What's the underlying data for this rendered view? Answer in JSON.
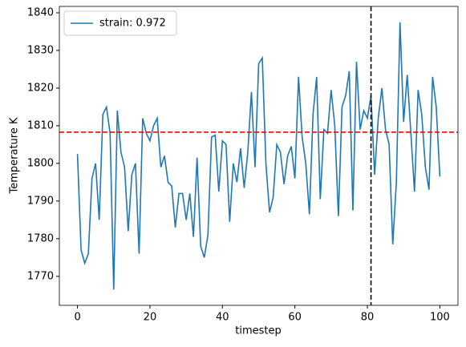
{
  "chart_data": {
    "type": "line",
    "xlabel": "timestep",
    "ylabel": "Temperature K",
    "x": [
      0,
      1,
      2,
      3,
      4,
      5,
      6,
      7,
      8,
      9,
      10,
      11,
      12,
      13,
      14,
      15,
      16,
      17,
      18,
      19,
      20,
      21,
      22,
      23,
      24,
      25,
      26,
      27,
      28,
      29,
      30,
      31,
      32,
      33,
      34,
      35,
      36,
      37,
      38,
      39,
      40,
      41,
      42,
      43,
      44,
      45,
      46,
      47,
      48,
      49,
      50,
      51,
      52,
      53,
      54,
      55,
      56,
      57,
      58,
      59,
      60,
      61,
      62,
      63,
      64,
      65,
      66,
      67,
      68,
      69,
      70,
      71,
      72,
      73,
      74,
      75,
      76,
      77,
      78,
      79,
      80,
      81,
      82,
      83,
      84,
      85,
      86,
      87,
      88,
      89,
      90,
      91,
      92,
      93,
      94,
      95,
      96,
      97,
      98,
      99,
      100
    ],
    "series": [
      {
        "name": "strain: 0.972",
        "color": "#1f77b4",
        "values": [
          1802.5,
          1777,
          1773.5,
          1776,
          1796,
          1800,
          1785,
          1813,
          1815,
          1808,
          1766.5,
          1814,
          1803,
          1799,
          1782,
          1797,
          1800,
          1776,
          1812,
          1808,
          1806,
          1810,
          1812,
          1799,
          1802,
          1795,
          1794,
          1783,
          1792,
          1792,
          1785,
          1792,
          1780.5,
          1801.5,
          1778,
          1775,
          1781,
          1807,
          1807.5,
          1792.5,
          1806,
          1805,
          1784.5,
          1800,
          1795,
          1804,
          1793.5,
          1803,
          1819,
          1799,
          1826.5,
          1828,
          1800,
          1787,
          1791,
          1805,
          1803,
          1794.5,
          1802,
          1804.5,
          1796,
          1823,
          1807,
          1800,
          1786.5,
          1813,
          1823,
          1790.5,
          1809,
          1808,
          1819.5,
          1810,
          1786,
          1815,
          1818,
          1824.5,
          1787.5,
          1827,
          1809,
          1814,
          1812,
          1818,
          1797,
          1812,
          1820,
          1809,
          1805,
          1778.5,
          1795,
          1837.5,
          1811,
          1823.5,
          1808,
          1792.5,
          1819.5,
          1813,
          1799,
          1793,
          1823,
          1815,
          1796.5
        ]
      }
    ],
    "hline": {
      "value": 1808.3,
      "color": "#ff0000"
    },
    "vline": {
      "value": 81,
      "color": "#000000"
    },
    "xlim": [
      -5,
      105
    ],
    "ylim": [
      1762.3,
      1841.7
    ],
    "xticks": [
      0,
      20,
      40,
      60,
      80,
      100
    ],
    "yticks": [
      1770,
      1780,
      1790,
      1800,
      1810,
      1820,
      1830,
      1840
    ],
    "legend": "upper-left"
  }
}
